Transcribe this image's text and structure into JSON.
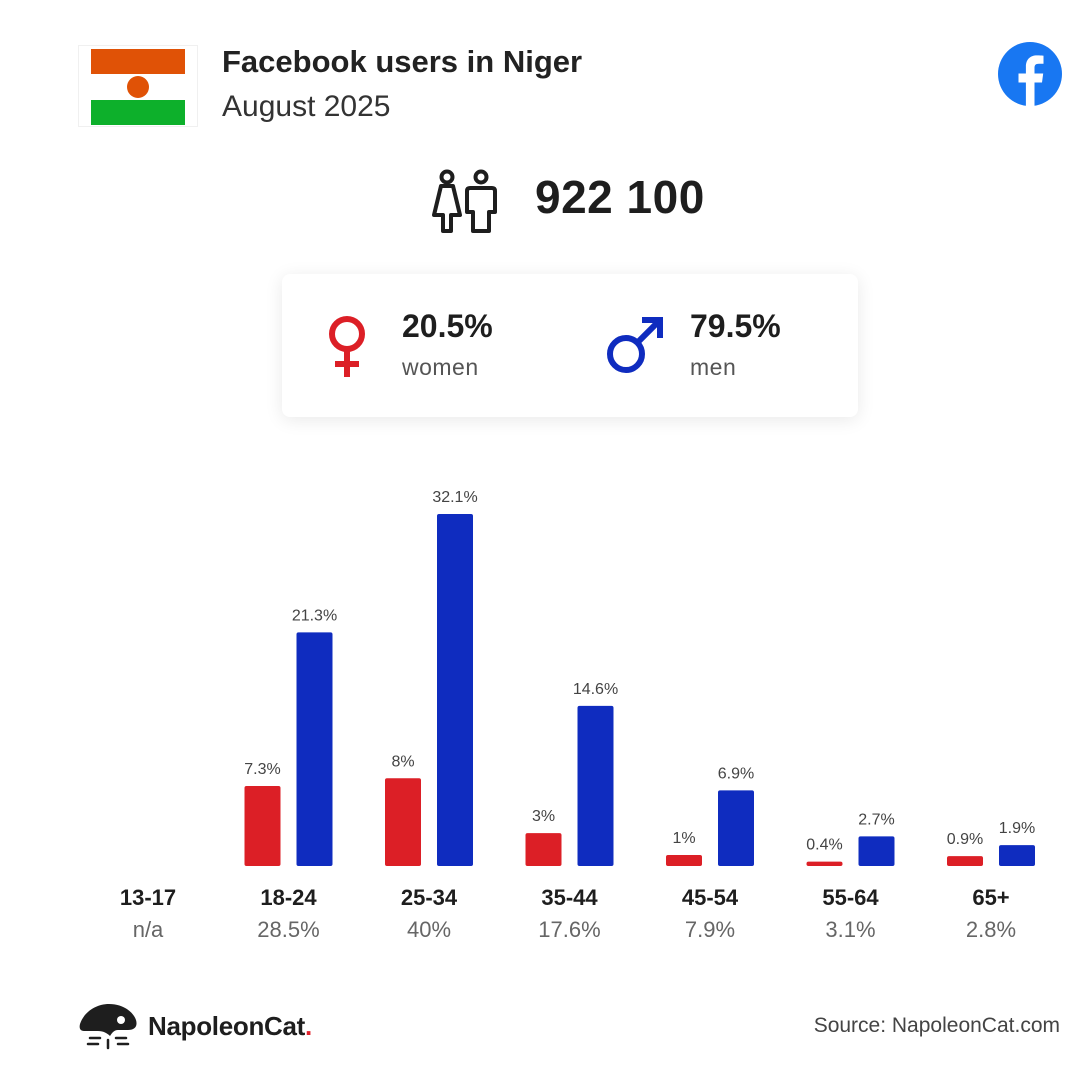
{
  "header": {
    "title": "Facebook users in Niger",
    "subtitle": "August 2025"
  },
  "icons": {
    "flag": "niger-flag-icon",
    "brand": "facebook-icon",
    "users": "users-icon",
    "female": "female-symbol-icon",
    "male": "male-symbol-icon",
    "publisher": "napoleoncat-logo-icon"
  },
  "total": {
    "value": "922 100"
  },
  "gender": {
    "women": {
      "pct": "20.5%",
      "label": "women"
    },
    "men": {
      "pct": "79.5%",
      "label": "men"
    }
  },
  "colors": {
    "women": "#dc1f26",
    "men": "#0f2cbf",
    "flag_orange": "#e05206",
    "flag_green": "#0db02b",
    "facebook": "#1877f2"
  },
  "chart_data": {
    "type": "bar",
    "categories": [
      "13-17",
      "18-24",
      "25-34",
      "35-44",
      "45-54",
      "55-64",
      "65+"
    ],
    "category_totals": [
      "n/a",
      "28.5%",
      "40%",
      "17.6%",
      "7.9%",
      "3.1%",
      "2.8%"
    ],
    "series": [
      {
        "name": "women",
        "values": [
          null,
          7.3,
          8,
          3,
          1,
          0.4,
          0.9
        ],
        "labels": [
          "",
          "7.3%",
          "8%",
          "3%",
          "1%",
          "0.4%",
          "0.9%"
        ]
      },
      {
        "name": "men",
        "values": [
          null,
          21.3,
          32.1,
          14.6,
          6.9,
          2.7,
          1.9
        ],
        "labels": [
          "",
          "21.3%",
          "32.1%",
          "14.6%",
          "6.9%",
          "2.7%",
          "1.9%"
        ]
      }
    ],
    "ylim": [
      0,
      32.1
    ],
    "grid": false
  },
  "footer": {
    "brand": "NapoleonCat",
    "brand_dot": ".",
    "source": "Source: NapoleonCat.com"
  }
}
